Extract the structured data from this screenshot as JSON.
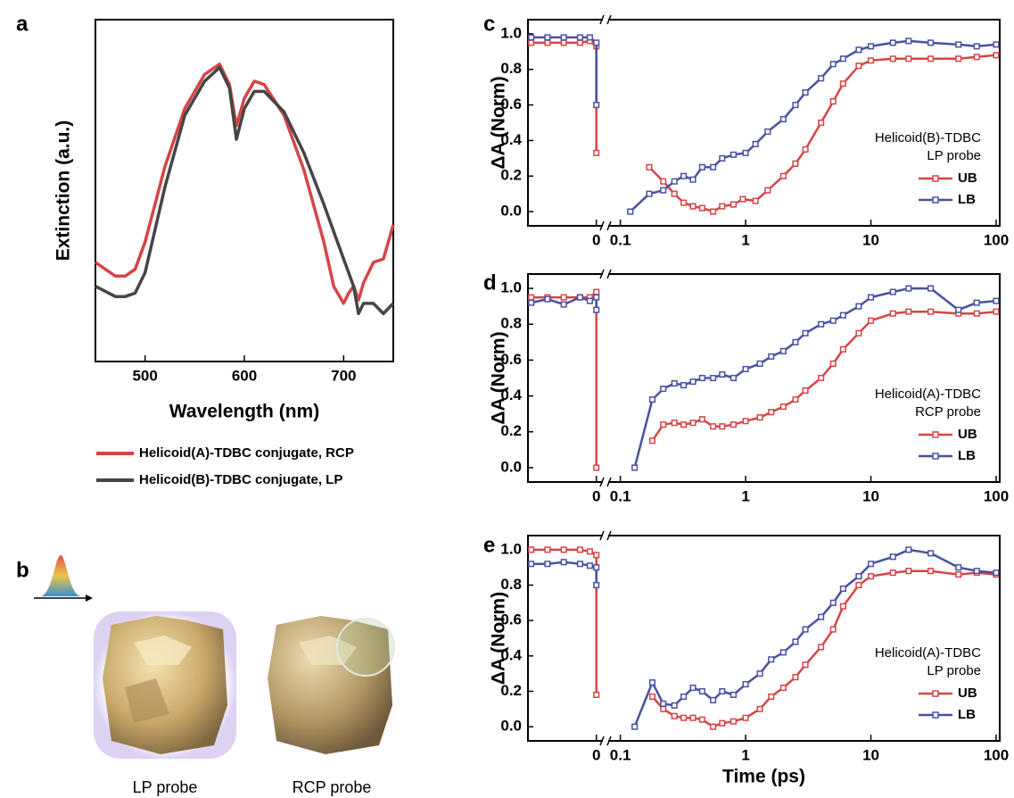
{
  "chart_data": [
    {
      "type": "line",
      "panel": "a",
      "x_label": "Wavelength (nm)",
      "y_label": "Extinction (a.u.)",
      "x": [
        450,
        470,
        480,
        490,
        500,
        520,
        540,
        560,
        575,
        585,
        592,
        600,
        610,
        620,
        640,
        660,
        680,
        690,
        700,
        705,
        710,
        715,
        720,
        730,
        740,
        750
      ],
      "xlim": [
        450,
        750
      ],
      "xticks": [
        500,
        600,
        700
      ],
      "ylim": [
        0,
        1
      ],
      "legend": "below",
      "series": [
        {
          "name": "Helicoid(A)-TDBC conjugate, RCP",
          "color": "#d64545",
          "values": [
            0.29,
            0.25,
            0.25,
            0.27,
            0.35,
            0.57,
            0.74,
            0.84,
            0.87,
            0.81,
            0.69,
            0.77,
            0.82,
            0.81,
            0.72,
            0.56,
            0.35,
            0.22,
            0.17,
            0.2,
            0.22,
            0.18,
            0.23,
            0.29,
            0.3,
            0.4
          ]
        },
        {
          "name": "Helicoid(B)-TDBC conjugate, LP",
          "color": "#454545",
          "values": [
            0.22,
            0.19,
            0.19,
            0.2,
            0.26,
            0.51,
            0.72,
            0.82,
            0.86,
            0.8,
            0.65,
            0.74,
            0.79,
            0.79,
            0.73,
            0.61,
            0.46,
            0.38,
            0.3,
            0.26,
            0.22,
            0.14,
            0.17,
            0.17,
            0.14,
            0.17
          ]
        }
      ]
    },
    {
      "type": "line",
      "panel": "c",
      "xscale": "broken-log",
      "marker": "square",
      "y_label": "ΔA (Norm)",
      "xlim_linear": [
        -1.05,
        0.1
      ],
      "xticks_linear": [
        0
      ],
      "xlim": [
        0.08,
        100
      ],
      "xticks": [
        0.1,
        1,
        10,
        100
      ],
      "ylim": [
        -0.08,
        1.08
      ],
      "yticks": [
        {
          "value": 0,
          "label": "0.0"
        },
        0.2,
        0.4,
        0.6,
        0.8,
        {
          "value": 1,
          "label": "1.0"
        }
      ],
      "annotation": [
        "Helicoid(B)-TDBC",
        "LP probe"
      ],
      "legend": "lower-right",
      "series": [
        {
          "name": "UB",
          "color": "#d64545",
          "x": [
            -1,
            -0.75,
            -0.5,
            -0.25,
            -0.1,
            0,
            0,
            0.17,
            0.22,
            0.27,
            0.32,
            0.38,
            0.45,
            0.55,
            0.65,
            0.8,
            0.95,
            1.2,
            1.5,
            2,
            2.5,
            3,
            4,
            5,
            6,
            8,
            10,
            15,
            20,
            30,
            50,
            70,
            100
          ],
          "values": [
            0.95,
            0.95,
            0.95,
            0.95,
            0.96,
            0.93,
            0.33,
            0.25,
            0.17,
            0.1,
            0.05,
            0.03,
            0.02,
            0.0,
            0.03,
            0.04,
            0.07,
            0.06,
            0.12,
            0.2,
            0.27,
            0.35,
            0.5,
            0.62,
            0.72,
            0.82,
            0.85,
            0.86,
            0.86,
            0.86,
            0.86,
            0.87,
            0.88
          ]
        },
        {
          "name": "LB",
          "color": "#4a50a0",
          "x": [
            -1,
            -0.75,
            -0.5,
            -0.25,
            -0.1,
            0,
            0,
            0.12,
            0.17,
            0.22,
            0.27,
            0.32,
            0.38,
            0.45,
            0.55,
            0.65,
            0.8,
            1,
            1.2,
            1.5,
            2,
            2.5,
            3,
            4,
            5,
            6,
            8,
            10,
            15,
            20,
            30,
            50,
            70,
            100
          ],
          "values": [
            0.98,
            0.98,
            0.98,
            0.98,
            0.98,
            0.95,
            0.6,
            0,
            0.1,
            0.12,
            0.17,
            0.2,
            0.18,
            0.25,
            0.25,
            0.3,
            0.32,
            0.33,
            0.38,
            0.45,
            0.52,
            0.6,
            0.67,
            0.75,
            0.83,
            0.86,
            0.91,
            0.93,
            0.95,
            0.96,
            0.95,
            0.94,
            0.93,
            0.94
          ]
        }
      ]
    },
    {
      "type": "line",
      "panel": "d",
      "xscale": "broken-log",
      "marker": "square",
      "y_label": "ΔA (Norm)",
      "xlim_linear": [
        -1.05,
        0.1
      ],
      "xticks_linear": [
        0
      ],
      "xlim": [
        0.08,
        100
      ],
      "xticks": [
        0.1,
        1,
        10,
        100
      ],
      "ylim": [
        -0.08,
        1.08
      ],
      "yticks": [
        {
          "value": 0,
          "label": "0.0"
        },
        0.2,
        0.4,
        0.6,
        0.8,
        {
          "value": 1,
          "label": "1.0"
        }
      ],
      "annotation": [
        "Helicoid(A)-TDBC",
        "RCP probe"
      ],
      "legend": "lower-right",
      "series": [
        {
          "name": "UB",
          "color": "#d64545",
          "x": [
            -1,
            -0.75,
            -0.5,
            -0.25,
            -0.1,
            0,
            0,
            0.18,
            0.22,
            0.27,
            0.32,
            0.38,
            0.45,
            0.55,
            0.65,
            0.8,
            1,
            1.3,
            1.6,
            2,
            2.5,
            3,
            4,
            5,
            6,
            8,
            10,
            15,
            20,
            30,
            50,
            70,
            100
          ],
          "values": [
            0.95,
            0.95,
            0.95,
            0.95,
            0.95,
            0.98,
            0.0,
            0.15,
            0.24,
            0.25,
            0.24,
            0.25,
            0.27,
            0.23,
            0.23,
            0.24,
            0.26,
            0.28,
            0.31,
            0.34,
            0.38,
            0.43,
            0.5,
            0.58,
            0.66,
            0.75,
            0.82,
            0.86,
            0.87,
            0.87,
            0.86,
            0.86,
            0.87
          ]
        },
        {
          "name": "LB",
          "color": "#4a50a0",
          "x": [
            -1,
            -0.75,
            -0.5,
            -0.25,
            -0.1,
            0,
            0,
            0.13,
            0.18,
            0.22,
            0.27,
            0.32,
            0.38,
            0.45,
            0.55,
            0.65,
            0.8,
            1,
            1.3,
            1.6,
            2,
            2.5,
            3,
            4,
            5,
            6,
            8,
            10,
            15,
            20,
            30,
            50,
            70,
            100
          ],
          "values": [
            0.92,
            0.94,
            0.91,
            0.95,
            0.93,
            0.95,
            0.88,
            0,
            0.38,
            0.44,
            0.47,
            0.46,
            0.48,
            0.5,
            0.5,
            0.52,
            0.5,
            0.55,
            0.58,
            0.62,
            0.65,
            0.7,
            0.75,
            0.8,
            0.82,
            0.85,
            0.9,
            0.95,
            0.98,
            1.0,
            1.0,
            0.88,
            0.92,
            0.93
          ]
        }
      ]
    },
    {
      "type": "line",
      "panel": "e",
      "xscale": "broken-log",
      "marker": "square",
      "y_label": "ΔA (Norm)",
      "x_label": "Time (ps)",
      "xlim_linear": [
        -1.05,
        0.1
      ],
      "xticks_linear": [
        0
      ],
      "xlim": [
        0.08,
        100
      ],
      "xticks": [
        0.1,
        1,
        10,
        100
      ],
      "ylim": [
        -0.08,
        1.08
      ],
      "yticks": [
        {
          "value": 0,
          "label": "0.0"
        },
        0.2,
        0.4,
        0.6,
        0.8,
        {
          "value": 1,
          "label": "1.0"
        }
      ],
      "annotation": [
        "Helicoid(A)-TDBC",
        "LP probe"
      ],
      "legend": "lower-right",
      "series": [
        {
          "name": "UB",
          "color": "#d64545",
          "x": [
            -1,
            -0.75,
            -0.5,
            -0.25,
            -0.1,
            0,
            0,
            0.18,
            0.22,
            0.27,
            0.32,
            0.38,
            0.45,
            0.55,
            0.65,
            0.8,
            1,
            1.3,
            1.6,
            2,
            2.5,
            3,
            4,
            5,
            6,
            8,
            10,
            15,
            20,
            30,
            50,
            70,
            100
          ],
          "values": [
            1.0,
            1.0,
            1.0,
            1.0,
            0.99,
            0.97,
            0.18,
            0.17,
            0.1,
            0.06,
            0.05,
            0.05,
            0.04,
            0,
            0.02,
            0.03,
            0.05,
            0.1,
            0.17,
            0.22,
            0.28,
            0.35,
            0.45,
            0.55,
            0.68,
            0.8,
            0.85,
            0.87,
            0.88,
            0.88,
            0.86,
            0.87,
            0.86
          ]
        },
        {
          "name": "LB",
          "color": "#4a50a0",
          "x": [
            -1,
            -0.75,
            -0.5,
            -0.25,
            -0.1,
            0,
            0,
            0.13,
            0.18,
            0.22,
            0.27,
            0.32,
            0.38,
            0.45,
            0.55,
            0.65,
            0.8,
            1,
            1.3,
            1.6,
            2,
            2.5,
            3,
            4,
            5,
            6,
            8,
            10,
            15,
            20,
            30,
            50,
            70,
            100
          ],
          "values": [
            0.92,
            0.92,
            0.93,
            0.92,
            0.91,
            0.9,
            0.8,
            0,
            0.25,
            0.13,
            0.12,
            0.17,
            0.22,
            0.2,
            0.15,
            0.2,
            0.18,
            0.24,
            0.3,
            0.38,
            0.42,
            0.48,
            0.55,
            0.62,
            0.7,
            0.78,
            0.85,
            0.92,
            0.96,
            1.0,
            0.98,
            0.9,
            0.88,
            0.87
          ]
        }
      ]
    }
  ],
  "illustration": {
    "panel": "b",
    "captions": [
      "LP probe",
      "RCP probe"
    ]
  }
}
